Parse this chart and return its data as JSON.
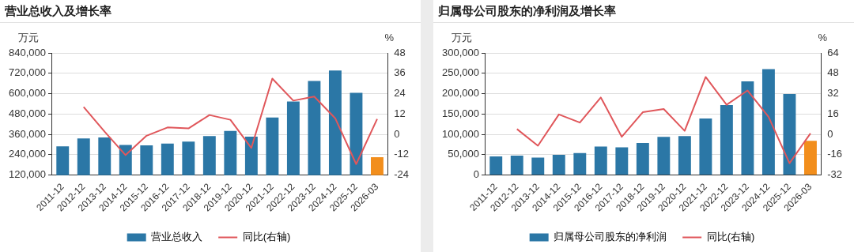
{
  "chart_data": [
    {
      "type": "bar",
      "title": "营业总收入及增长率",
      "ylabel": "万元",
      "y2label": "%",
      "categories": [
        "2011-12",
        "2012-12",
        "2013-12",
        "2014-12",
        "2015-12",
        "2016-12",
        "2017-12",
        "2018-12",
        "2019-12",
        "2020-12",
        "2021-12",
        "2022-12",
        "2023-12",
        "2024-12",
        "2025-12",
        "2026-03"
      ],
      "series": [
        {
          "name": "营业总收入",
          "color": "#2b77a6",
          "colors": [
            "#2b77a6",
            "#2b77a6",
            "#2b77a6",
            "#2b77a6",
            "#2b77a6",
            "#2b77a6",
            "#2b77a6",
            "#2b77a6",
            "#2b77a6",
            "#2b77a6",
            "#2b77a6",
            "#2b77a6",
            "#2b77a6",
            "#2b77a6",
            "#2b77a6",
            "#f28e1c"
          ],
          "values": [
            290000,
            336000,
            342000,
            298000,
            295000,
            306000,
            317000,
            350000,
            380000,
            347000,
            460000,
            554000,
            675000,
            737000,
            605000,
            225000
          ]
        },
        {
          "name": "同比(右轴)",
          "type": "line",
          "axis": "y2",
          "color": "#e0575b",
          "values": [
            null,
            16.2,
            1.6,
            -12.2,
            -0.8,
            4.1,
            3.5,
            11.4,
            8.6,
            -8,
            32.9,
            19.9,
            22.3,
            9.5,
            -17.5,
            9.1
          ]
        }
      ],
      "ylim": [
        120000,
        840000
      ],
      "yticks": [
        {
          "value": 120000,
          "label": "120,000"
        },
        {
          "value": 240000,
          "label": "240,000"
        },
        {
          "value": 360000,
          "label": "360,000"
        },
        {
          "value": 480000,
          "label": "480,000"
        },
        {
          "value": 600000,
          "label": "600,000"
        },
        {
          "value": 720000,
          "label": "720,000"
        },
        {
          "value": 840000,
          "label": "840,000"
        }
      ],
      "y2lim": [
        -24,
        48
      ],
      "y2ticks": [
        -24,
        -12,
        0,
        12,
        24,
        36,
        48
      ],
      "grid": "y",
      "legend": "bottom",
      "marker": "none"
    },
    {
      "type": "bar",
      "title": "归属母公司股东的净利润及增长率",
      "ylabel": "万元",
      "y2label": "%",
      "categories": [
        "2011-12",
        "2012-12",
        "2013-12",
        "2014-12",
        "2015-12",
        "2016-12",
        "2017-12",
        "2018-12",
        "2019-12",
        "2020-12",
        "2021-12",
        "2022-12",
        "2023-12",
        "2024-12",
        "2025-12",
        "2026-03"
      ],
      "series": [
        {
          "name": "归属母公司股东的净利润",
          "color": "#2b77a6",
          "colors": [
            "#2b77a6",
            "#2b77a6",
            "#2b77a6",
            "#2b77a6",
            "#2b77a6",
            "#2b77a6",
            "#2b77a6",
            "#2b77a6",
            "#2b77a6",
            "#2b77a6",
            "#2b77a6",
            "#2b77a6",
            "#2b77a6",
            "#2b77a6",
            "#2b77a6",
            "#f28e1c"
          ],
          "values": [
            46000,
            48000,
            43000,
            50000,
            54000,
            70000,
            68000,
            79000,
            94000,
            96000,
            139000,
            172000,
            230000,
            260000,
            199000,
            84000
          ]
        },
        {
          "name": "同比(右轴)",
          "type": "line",
          "axis": "y2",
          "color": "#e0575b",
          "values": [
            null,
            4.2,
            -8.9,
            15.7,
            9.3,
            29,
            -1.9,
            17.4,
            19.9,
            2.8,
            45.1,
            23.3,
            34.5,
            13.8,
            -22.7,
            0.8
          ]
        }
      ],
      "ylim": [
        0,
        300000
      ],
      "yticks": [
        0,
        {
          "value": 50000,
          "label": "50,000"
        },
        {
          "value": 100000,
          "label": "100,000"
        },
        {
          "value": 150000,
          "label": "150,000"
        },
        {
          "value": 200000,
          "label": "200,000"
        },
        {
          "value": 250000,
          "label": "250,000"
        },
        {
          "value": 300000,
          "label": "300,000"
        }
      ],
      "y2lim": [
        -32,
        64
      ],
      "y2ticks": [
        -32,
        -16,
        0,
        16,
        32,
        48,
        64
      ],
      "grid": "y",
      "legend": "bottom",
      "marker": "none"
    }
  ]
}
